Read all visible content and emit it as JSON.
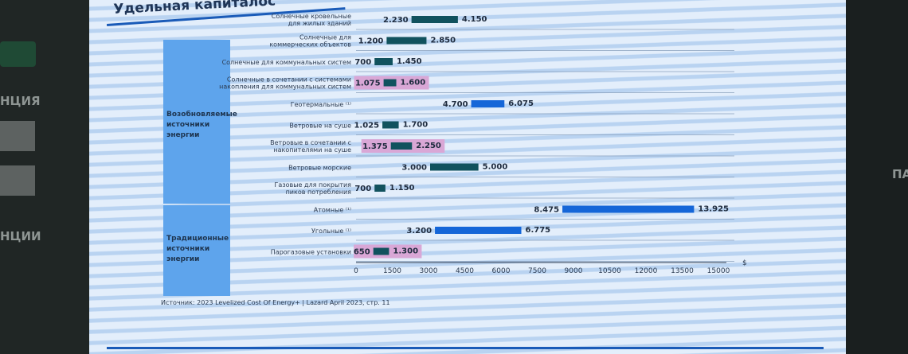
{
  "background": {
    "left_texts": [
      "НЦИЯ",
      "НЦИИ"
    ],
    "right_text": "ПА"
  },
  "slide": {
    "title": "Удельная капиталос",
    "groups": [
      {
        "label": "Возобновляемые источники энергии"
      },
      {
        "label": "Традиционные источники энергии"
      }
    ],
    "source": "Источник: 2023 Levelized Cost Of Energy+ | Lazard April 2023, стр. 11"
  },
  "chart_data": {
    "type": "bar",
    "orientation": "horizontal-range",
    "xlabel": "$",
    "xlim": [
      0,
      15000
    ],
    "xticks": [
      "0",
      "1500",
      "3000",
      "4500",
      "6000",
      "7500",
      "9000",
      "10500",
      "12000",
      "13500",
      "15000"
    ],
    "colors": {
      "dark": "#11525e",
      "bright": "#1566d8",
      "highlight": "#d9a7d6"
    },
    "categories": [
      {
        "label": "Солнечные кровельные для жилых зданий",
        "low": 2230,
        "high": 4150,
        "low_label": "2.230",
        "high_label": "4.150",
        "color": "dark",
        "highlight": false,
        "group": 0
      },
      {
        "label": "Солнечные для коммерческих объектов",
        "low": 1200,
        "high": 2850,
        "low_label": "1.200",
        "high_label": "2.850",
        "color": "dark",
        "highlight": false,
        "group": 0
      },
      {
        "label": "Солнечные для коммунальных систем",
        "low": 700,
        "high": 1450,
        "low_label": "700",
        "high_label": "1.450",
        "color": "dark",
        "highlight": false,
        "group": 0
      },
      {
        "label": "Солнечные в сочетании с системами накопления для коммунальных систем",
        "low": 1075,
        "high": 1600,
        "low_label": "1.075",
        "high_label": "1.600",
        "color": "dark",
        "highlight": true,
        "group": 0
      },
      {
        "label": "Геотермальные ⁽¹⁾",
        "low": 4700,
        "high": 6075,
        "low_label": "4.700",
        "high_label": "6.075",
        "color": "bright",
        "highlight": false,
        "group": 0
      },
      {
        "label": "Ветровые на суше",
        "low": 1025,
        "high": 1700,
        "low_label": "1.025",
        "high_label": "1.700",
        "color": "dark",
        "highlight": false,
        "group": 0
      },
      {
        "label": "Ветровые в сочетании с накопителями на суше",
        "low": 1375,
        "high": 2250,
        "low_label": "1.375",
        "high_label": "2.250",
        "color": "dark",
        "highlight": true,
        "group": 0
      },
      {
        "label": "Ветровые морские",
        "low": 3000,
        "high": 5000,
        "low_label": "3.000",
        "high_label": "5.000",
        "color": "dark",
        "highlight": false,
        "group": 0
      },
      {
        "label": "Газовые для покрытия пиков потребления",
        "low": 700,
        "high": 1150,
        "low_label": "700",
        "high_label": "1.150",
        "color": "dark",
        "highlight": false,
        "group": 1
      },
      {
        "label": "Атомные ⁽¹⁾",
        "low": 8475,
        "high": 13925,
        "low_label": "8.475",
        "high_label": "13.925",
        "color": "bright",
        "highlight": false,
        "group": 1
      },
      {
        "label": "Угольные ⁽¹⁾",
        "low": 3200,
        "high": 6775,
        "low_label": "3.200",
        "high_label": "6.775",
        "color": "bright",
        "highlight": false,
        "group": 1
      },
      {
        "label": "Парогазовые установки",
        "low": 650,
        "high": 1300,
        "low_label": "650",
        "high_label": "1.300",
        "color": "dark",
        "highlight": true,
        "group": 1
      }
    ]
  }
}
